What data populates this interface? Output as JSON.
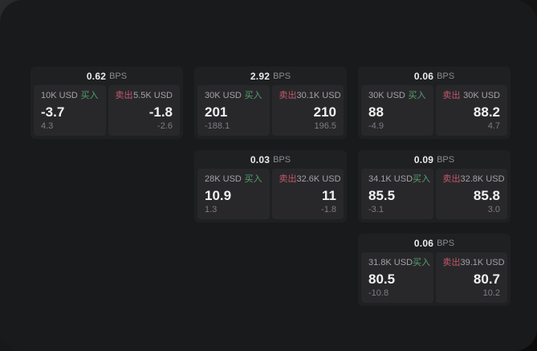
{
  "labels": {
    "bps_unit": "BPS",
    "buy": "买入",
    "sell": "卖出"
  },
  "colors": {
    "window_bg": "#191a1b",
    "card_bg": "#1f2022",
    "panel_bg": "#28282b",
    "buy_accent": "#55a06c",
    "sell_accent": "#c4566a"
  },
  "cards": [
    {
      "slot": {
        "row": 1,
        "col": 1
      },
      "bps": "0.62",
      "buy": {
        "amount": "10K USD",
        "value": "-3.7",
        "delta": "4.3"
      },
      "sell": {
        "amount": "5.5K USD",
        "value": "-1.8",
        "delta": "-2.6"
      }
    },
    {
      "slot": {
        "row": 1,
        "col": 2
      },
      "bps": "2.92",
      "buy": {
        "amount": "30K USD",
        "value": "201",
        "delta": "-188.1"
      },
      "sell": {
        "amount": "30.1K USD",
        "value": "210",
        "delta": "196.5"
      }
    },
    {
      "slot": {
        "row": 1,
        "col": 3
      },
      "bps": "0.06",
      "buy": {
        "amount": "30K USD",
        "value": "88",
        "delta": "-4.9"
      },
      "sell": {
        "amount": "30K USD",
        "value": "88.2",
        "delta": "4.7"
      }
    },
    {
      "slot": {
        "row": 2,
        "col": 2
      },
      "bps": "0.03",
      "buy": {
        "amount": "28K USD",
        "value": "10.9",
        "delta": "1.3"
      },
      "sell": {
        "amount": "32.6K USD",
        "value": "11",
        "delta": "-1.8"
      }
    },
    {
      "slot": {
        "row": 2,
        "col": 3
      },
      "bps": "0.09",
      "buy": {
        "amount": "34.1K USD",
        "value": "85.5",
        "delta": "-3.1"
      },
      "sell": {
        "amount": "32.8K USD",
        "value": "85.8",
        "delta": "3.0"
      }
    },
    {
      "slot": {
        "row": 3,
        "col": 3
      },
      "bps": "0.06",
      "buy": {
        "amount": "31.8K USD",
        "value": "80.5",
        "delta": "-10.8"
      },
      "sell": {
        "amount": "39.1K USD",
        "value": "80.7",
        "delta": "10.2"
      }
    }
  ]
}
